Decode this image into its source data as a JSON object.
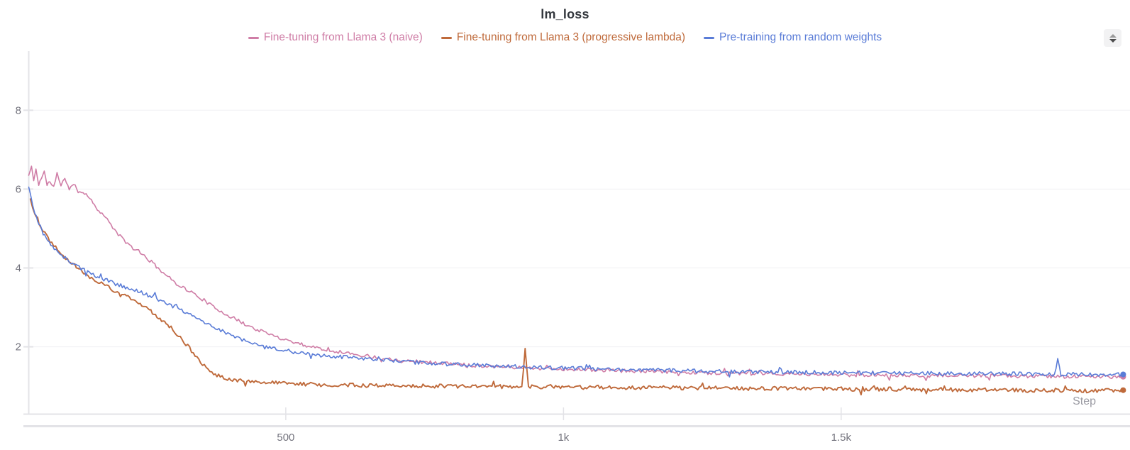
{
  "panel": {
    "title": "lm_loss",
    "stepper_icon": "up-down-stepper-icon"
  },
  "legend": [
    {
      "label": "Fine-tuning from Llama 3 (naive)",
      "color": "#cf7da6"
    },
    {
      "label": "Fine-tuning from Llama 3 (progressive lambda)",
      "color": "#bf6a3b"
    },
    {
      "label": "Pre-training from random weights",
      "color": "#5a7cd7"
    }
  ],
  "chart_data": {
    "type": "line",
    "title": "lm_loss",
    "xlabel": "Step",
    "ylabel": "",
    "xlim": [
      37,
      2010
    ],
    "ylim": [
      0.3,
      9.5
    ],
    "grid": true,
    "legend_position": "top",
    "x_ticks": [
      {
        "value": 500,
        "label": "500"
      },
      {
        "value": 1000,
        "label": "1k"
      },
      {
        "value": 1500,
        "label": "1.5k"
      }
    ],
    "y_ticks": [
      {
        "value": 2,
        "label": "2"
      },
      {
        "value": 4,
        "label": "4"
      },
      {
        "value": 6,
        "label": "6"
      },
      {
        "value": 8,
        "label": "8"
      }
    ],
    "series": [
      {
        "name": "Fine-tuning from Llama 3 (naive)",
        "color": "#cf7da6",
        "noise": 0.045,
        "seed": 11,
        "width": 1.6,
        "end_dot": true,
        "points": [
          [
            37,
            6.35
          ],
          [
            42,
            6.55
          ],
          [
            46,
            6.25
          ],
          [
            50,
            6.5
          ],
          [
            55,
            6.1
          ],
          [
            60,
            6.3
          ],
          [
            65,
            6.45
          ],
          [
            70,
            6.1
          ],
          [
            75,
            6.2
          ],
          [
            82,
            6.05
          ],
          [
            88,
            6.4
          ],
          [
            95,
            6.05
          ],
          [
            102,
            6.3
          ],
          [
            110,
            6.0
          ],
          [
            118,
            6.12
          ],
          [
            126,
            5.95
          ],
          [
            135,
            5.92
          ],
          [
            143,
            5.85
          ],
          [
            150,
            5.7
          ],
          [
            158,
            5.55
          ],
          [
            166,
            5.42
          ],
          [
            175,
            5.28
          ],
          [
            185,
            5.1
          ],
          [
            195,
            4.9
          ],
          [
            205,
            4.75
          ],
          [
            215,
            4.62
          ],
          [
            225,
            4.5
          ],
          [
            235,
            4.4
          ],
          [
            245,
            4.3
          ],
          [
            258,
            4.15
          ],
          [
            270,
            4.0
          ],
          [
            282,
            3.85
          ],
          [
            294,
            3.7
          ],
          [
            306,
            3.58
          ],
          [
            318,
            3.48
          ],
          [
            330,
            3.38
          ],
          [
            343,
            3.27
          ],
          [
            356,
            3.15
          ],
          [
            370,
            3.0
          ],
          [
            384,
            2.9
          ],
          [
            398,
            2.78
          ],
          [
            412,
            2.68
          ],
          [
            426,
            2.58
          ],
          [
            440,
            2.48
          ],
          [
            455,
            2.4
          ],
          [
            470,
            2.32
          ],
          [
            485,
            2.25
          ],
          [
            500,
            2.18
          ],
          [
            520,
            2.1
          ],
          [
            540,
            2.02
          ],
          [
            562,
            1.96
          ],
          [
            585,
            1.9
          ],
          [
            610,
            1.84
          ],
          [
            635,
            1.79
          ],
          [
            660,
            1.74
          ],
          [
            690,
            1.69
          ],
          [
            720,
            1.65
          ],
          [
            751,
            1.61
          ],
          [
            785,
            1.58
          ],
          [
            815,
            1.55
          ],
          [
            850,
            1.52
          ],
          [
            890,
            1.5
          ],
          [
            930,
            1.47
          ],
          [
            970,
            1.45
          ],
          [
            1010,
            1.43
          ],
          [
            1060,
            1.41
          ],
          [
            1110,
            1.39
          ],
          [
            1160,
            1.37
          ],
          [
            1210,
            1.35
          ],
          [
            1260,
            1.34
          ],
          [
            1320,
            1.32
          ],
          [
            1380,
            1.31
          ],
          [
            1440,
            1.3
          ],
          [
            1500,
            1.29
          ],
          [
            1560,
            1.28
          ],
          [
            1620,
            1.27
          ],
          [
            1680,
            1.27
          ],
          [
            1740,
            1.26
          ],
          [
            1800,
            1.26
          ],
          [
            1860,
            1.25
          ],
          [
            1920,
            1.25
          ],
          [
            1970,
            1.24
          ],
          [
            2008,
            1.24
          ]
        ]
      },
      {
        "name": "Fine-tuning from Llama 3 (progressive lambda)",
        "color": "#bf6a3b",
        "noise": 0.05,
        "seed": 22,
        "width": 1.9,
        "end_dot": true,
        "points": [
          [
            40,
            5.75
          ],
          [
            44,
            5.55
          ],
          [
            48,
            5.38
          ],
          [
            53,
            5.22
          ],
          [
            58,
            5.08
          ],
          [
            63,
            4.95
          ],
          [
            69,
            4.82
          ],
          [
            75,
            4.7
          ],
          [
            82,
            4.58
          ],
          [
            89,
            4.47
          ],
          [
            96,
            4.37
          ],
          [
            104,
            4.26
          ],
          [
            112,
            4.16
          ],
          [
            120,
            4.06
          ],
          [
            128,
            3.97
          ],
          [
            136,
            3.89
          ],
          [
            144,
            3.81
          ],
          [
            153,
            3.73
          ],
          [
            162,
            3.65
          ],
          [
            171,
            3.58
          ],
          [
            181,
            3.5
          ],
          [
            191,
            3.43
          ],
          [
            202,
            3.35
          ],
          [
            213,
            3.27
          ],
          [
            224,
            3.19
          ],
          [
            235,
            3.1
          ],
          [
            246,
            3.0
          ],
          [
            257,
            2.9
          ],
          [
            268,
            2.78
          ],
          [
            279,
            2.66
          ],
          [
            290,
            2.52
          ],
          [
            300,
            2.38
          ],
          [
            310,
            2.24
          ],
          [
            320,
            2.08
          ],
          [
            330,
            1.9
          ],
          [
            340,
            1.72
          ],
          [
            350,
            1.55
          ],
          [
            360,
            1.42
          ],
          [
            370,
            1.32
          ],
          [
            382,
            1.25
          ],
          [
            395,
            1.2
          ],
          [
            410,
            1.16
          ],
          [
            430,
            1.12
          ],
          [
            455,
            1.1
          ],
          [
            485,
            1.08
          ],
          [
            520,
            1.06
          ],
          [
            560,
            1.04
          ],
          [
            600,
            1.03
          ],
          [
            645,
            1.02
          ],
          [
            690,
            1.03
          ],
          [
            735,
            1.01
          ],
          [
            780,
            1.0
          ],
          [
            830,
            1.0
          ],
          [
            880,
            0.99
          ],
          [
            925,
            0.98
          ],
          [
            931,
            1.92
          ],
          [
            937,
            0.98
          ],
          [
            980,
            0.99
          ],
          [
            1030,
            0.97
          ],
          [
            1080,
            0.98
          ],
          [
            1130,
            0.96
          ],
          [
            1180,
            0.97
          ],
          [
            1230,
            0.95
          ],
          [
            1280,
            0.96
          ],
          [
            1330,
            0.94
          ],
          [
            1380,
            0.95
          ],
          [
            1430,
            0.93
          ],
          [
            1480,
            0.94
          ],
          [
            1530,
            0.92
          ],
          [
            1580,
            0.93
          ],
          [
            1630,
            0.91
          ],
          [
            1680,
            0.92
          ],
          [
            1730,
            0.9
          ],
          [
            1780,
            0.91
          ],
          [
            1830,
            0.89
          ],
          [
            1880,
            0.9
          ],
          [
            1930,
            0.88
          ],
          [
            1970,
            0.89
          ],
          [
            2008,
            0.9
          ]
        ]
      },
      {
        "name": "Pre-training from random weights",
        "color": "#5a7cd7",
        "noise": 0.05,
        "seed": 33,
        "width": 1.6,
        "end_dot": true,
        "points": [
          [
            37,
            6.05
          ],
          [
            40,
            5.85
          ],
          [
            44,
            5.6
          ],
          [
            48,
            5.4
          ],
          [
            53,
            5.2
          ],
          [
            58,
            5.05
          ],
          [
            63,
            4.88
          ],
          [
            68,
            4.75
          ],
          [
            74,
            4.63
          ],
          [
            80,
            4.52
          ],
          [
            86,
            4.44
          ],
          [
            93,
            4.36
          ],
          [
            100,
            4.28
          ],
          [
            108,
            4.2
          ],
          [
            116,
            4.12
          ],
          [
            125,
            4.04
          ],
          [
            134,
            3.97
          ],
          [
            143,
            3.9
          ],
          [
            153,
            3.83
          ],
          [
            164,
            3.76
          ],
          [
            175,
            3.7
          ],
          [
            187,
            3.63
          ],
          [
            200,
            3.56
          ],
          [
            214,
            3.49
          ],
          [
            228,
            3.43
          ],
          [
            243,
            3.36
          ],
          [
            258,
            3.28
          ],
          [
            274,
            3.18
          ],
          [
            290,
            3.08
          ],
          [
            306,
            2.97
          ],
          [
            322,
            2.86
          ],
          [
            338,
            2.74
          ],
          [
            354,
            2.62
          ],
          [
            370,
            2.5
          ],
          [
            386,
            2.4
          ],
          [
            402,
            2.3
          ],
          [
            418,
            2.2
          ],
          [
            434,
            2.1
          ],
          [
            450,
            2.03
          ],
          [
            468,
            1.97
          ],
          [
            486,
            1.93
          ],
          [
            505,
            1.89
          ],
          [
            525,
            1.85
          ],
          [
            548,
            1.81
          ],
          [
            572,
            1.77
          ],
          [
            598,
            1.74
          ],
          [
            625,
            1.71
          ],
          [
            655,
            1.68
          ],
          [
            685,
            1.65
          ],
          [
            715,
            1.62
          ],
          [
            751,
            1.59
          ],
          [
            790,
            1.56
          ],
          [
            830,
            1.54
          ],
          [
            870,
            1.52
          ],
          [
            910,
            1.5
          ],
          [
            950,
            1.48
          ],
          [
            1000,
            1.46
          ],
          [
            1050,
            1.44
          ],
          [
            1100,
            1.42
          ],
          [
            1150,
            1.41
          ],
          [
            1200,
            1.4
          ],
          [
            1260,
            1.38
          ],
          [
            1320,
            1.37
          ],
          [
            1380,
            1.36
          ],
          [
            1440,
            1.35
          ],
          [
            1500,
            1.34
          ],
          [
            1560,
            1.33
          ],
          [
            1620,
            1.33
          ],
          [
            1680,
            1.32
          ],
          [
            1740,
            1.32
          ],
          [
            1800,
            1.31
          ],
          [
            1860,
            1.31
          ],
          [
            1884,
            1.3
          ],
          [
            1890,
            1.68
          ],
          [
            1896,
            1.3
          ],
          [
            1930,
            1.3
          ],
          [
            1970,
            1.3
          ],
          [
            2008,
            1.3
          ]
        ]
      }
    ]
  }
}
